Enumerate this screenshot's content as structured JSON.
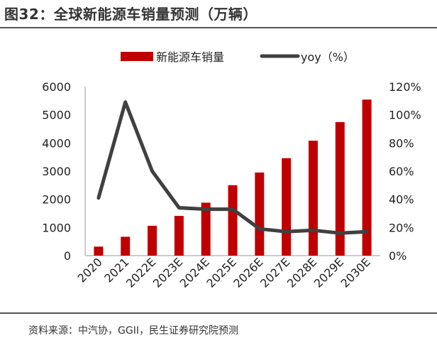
{
  "figure_title": "图32：全球新能源车销量预测（万辆）",
  "source_note": "资料来源：中汽协，GGII，民生证券研究院预测",
  "colors": {
    "bar": "#c00000",
    "line": "#404040",
    "axis": "#999999",
    "text": "#222222"
  },
  "chart_data": {
    "type": "bar+line",
    "title": "",
    "categories": [
      "2020",
      "2021",
      "2022E",
      "2023E",
      "2024E",
      "2025E",
      "2026E",
      "2027E",
      "2028E",
      "2029E",
      "2030E"
    ],
    "series": [
      {
        "name": "新能源车销量",
        "type": "bar",
        "axis": "left",
        "values": [
          320,
          670,
          1060,
          1410,
          1880,
          2500,
          2950,
          3460,
          4080,
          4740,
          5540
        ]
      },
      {
        "name": "yoy（%）",
        "type": "line",
        "axis": "right",
        "values": [
          41,
          109,
          60,
          34,
          33,
          33,
          19,
          17,
          18,
          16,
          17
        ]
      }
    ],
    "y_left": {
      "min": 0,
      "max": 6000,
      "ticks": [
        "0",
        "1000",
        "2000",
        "3000",
        "4000",
        "5000",
        "6000"
      ]
    },
    "y_right": {
      "min": 0,
      "max": 120,
      "ticks": [
        "0%",
        "20%",
        "40%",
        "60%",
        "80%",
        "100%",
        "120%"
      ]
    },
    "legend": {
      "position": "top-center",
      "labels": [
        "新能源车销量",
        "yoy（%）"
      ]
    }
  }
}
